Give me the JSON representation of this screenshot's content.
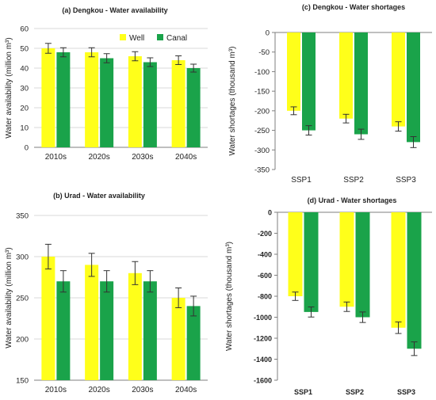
{
  "colors": {
    "well": "#FFFF1A",
    "canal": "#1AA34A",
    "grid": "#D9D9D9",
    "axis": "#7F7F7F",
    "errorbar": "#333333"
  },
  "chart_data": [
    {
      "type": "bar",
      "title": "(a) Dengkou - Water availability",
      "ylabel": "Water availability (million m³)",
      "categories": [
        "2010s",
        "2020s",
        "2030s",
        "2040s"
      ],
      "ylim": [
        0,
        60
      ],
      "yticks": [
        "0",
        "10",
        "20",
        "30",
        "40",
        "50",
        "60"
      ],
      "grid": true,
      "legend": "top-right",
      "series": [
        {
          "name": "Well",
          "values": [
            50,
            48,
            46,
            44
          ],
          "errors": [
            2.5,
            2.3,
            2.3,
            2.2
          ]
        },
        {
          "name": "Canal",
          "values": [
            48,
            45,
            43,
            40
          ],
          "errors": [
            2.3,
            2.3,
            2.2,
            2.0
          ]
        }
      ]
    },
    {
      "type": "bar",
      "title": "(b) Urad - Water availability",
      "ylabel": "Water availability (million m³)",
      "categories": [
        "2010s",
        "2020s",
        "2030s",
        "2040s"
      ],
      "ylim": [
        150,
        350
      ],
      "yticks": [
        "150",
        "200",
        "250",
        "300",
        "350"
      ],
      "grid": true,
      "series": [
        {
          "name": "Well",
          "values": [
            300,
            290,
            280,
            250
          ],
          "errors": [
            15,
            14,
            14,
            12
          ]
        },
        {
          "name": "Canal",
          "values": [
            270,
            270,
            270,
            240
          ],
          "errors": [
            13,
            13,
            13,
            12
          ]
        }
      ]
    },
    {
      "type": "bar",
      "title": "(c) Dengkou - Water shortages",
      "ylabel": "Water shortages (thousand m³)",
      "categories": [
        "SSP1",
        "SSP2",
        "SSP3"
      ],
      "ylim": [
        -350,
        0
      ],
      "yticks": [
        "0",
        "-50",
        "-100",
        "-150",
        "-200",
        "-250",
        "-300",
        "-350"
      ],
      "grid": false,
      "series": [
        {
          "name": "Well",
          "values": [
            -200,
            -220,
            -240
          ],
          "errors": [
            10,
            11,
            12
          ]
        },
        {
          "name": "Canal",
          "values": [
            -250,
            -260,
            -280
          ],
          "errors": [
            12,
            13,
            14
          ]
        }
      ]
    },
    {
      "type": "bar",
      "title": "(d) Urad - Water shortages",
      "ylabel": "Water shortages (thousand m³)",
      "categories": [
        "SSP1",
        "SSP2",
        "SSP3"
      ],
      "ylim": [
        -1600,
        0
      ],
      "yticks": [
        "0",
        "-200",
        "-400",
        "-600",
        "-800",
        "-1000",
        "-1200",
        "-1400",
        "-1600"
      ],
      "grid": false,
      "series": [
        {
          "name": "Well",
          "values": [
            -800,
            -900,
            -1100
          ],
          "errors": [
            40,
            45,
            55
          ]
        },
        {
          "name": "Canal",
          "values": [
            -950,
            -1000,
            -1300
          ],
          "errors": [
            48,
            50,
            65
          ]
        }
      ]
    }
  ]
}
